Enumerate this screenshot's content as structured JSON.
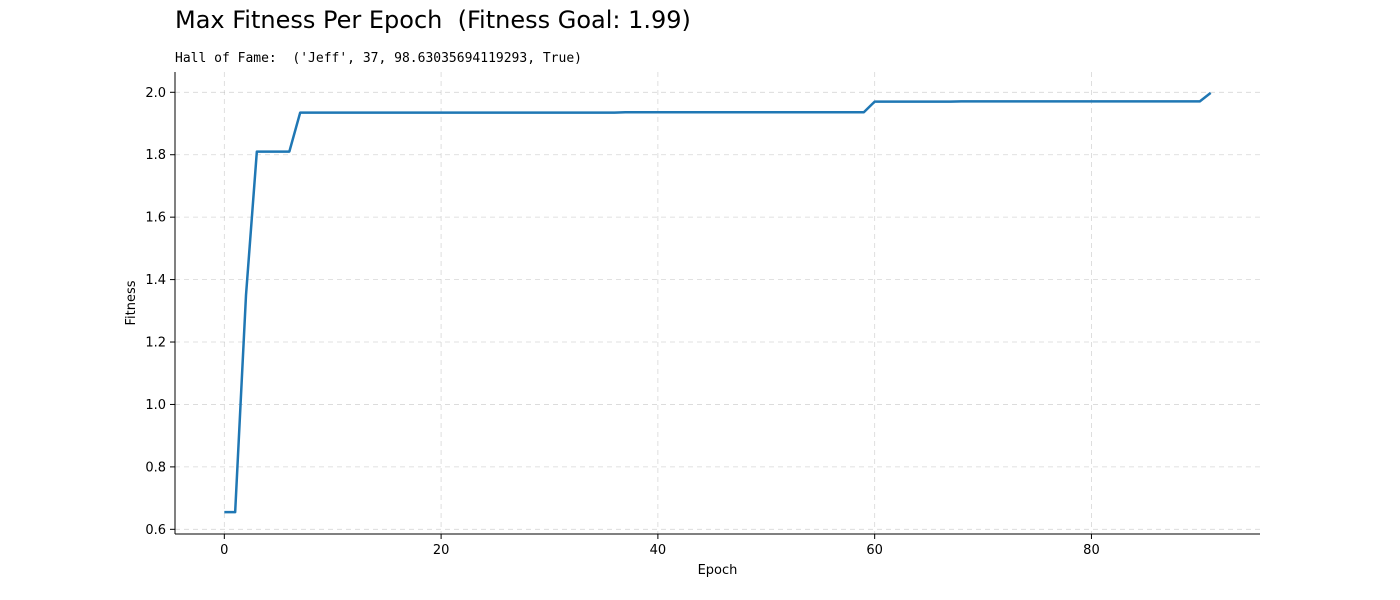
{
  "header": {
    "title": "Max Fitness Per Epoch  (Fitness Goal: 1.99)",
    "subtitle": "Hall of Fame:  ('Jeff', 37, 98.63035694119293, True)"
  },
  "chart_data": {
    "type": "line",
    "title": "Max Fitness Per Epoch  (Fitness Goal: 1.99)",
    "subtitle": "Hall of Fame:  ('Jeff', 37, 98.63035694119293, True)",
    "xlabel": "Epoch",
    "ylabel": "Fitness",
    "xlim": [
      -4.55,
      95.55
    ],
    "ylim": [
      0.585,
      2.065
    ],
    "xticks": [
      0,
      20,
      40,
      60,
      80
    ],
    "yticks": [
      0.6,
      0.8,
      1.0,
      1.2,
      1.4,
      1.6,
      1.8,
      2.0
    ],
    "ytick_labels": [
      "0.6",
      "0.8",
      "1.0",
      "1.2",
      "1.4",
      "1.6",
      "1.8",
      "2.0"
    ],
    "grid": true,
    "line_color": "#1f77b4",
    "series": [
      {
        "x": [
          0,
          1,
          2,
          3,
          4,
          5,
          6,
          7,
          8,
          20,
          36,
          37,
          40,
          58,
          59,
          60,
          67,
          68,
          80,
          90,
          91
        ],
        "y": [
          0.655,
          0.655,
          1.35,
          1.81,
          1.81,
          1.81,
          1.81,
          1.935,
          1.935,
          1.935,
          1.935,
          1.936,
          1.936,
          1.936,
          1.936,
          1.97,
          1.97,
          1.971,
          1.971,
          1.971,
          1.998
        ]
      }
    ]
  }
}
